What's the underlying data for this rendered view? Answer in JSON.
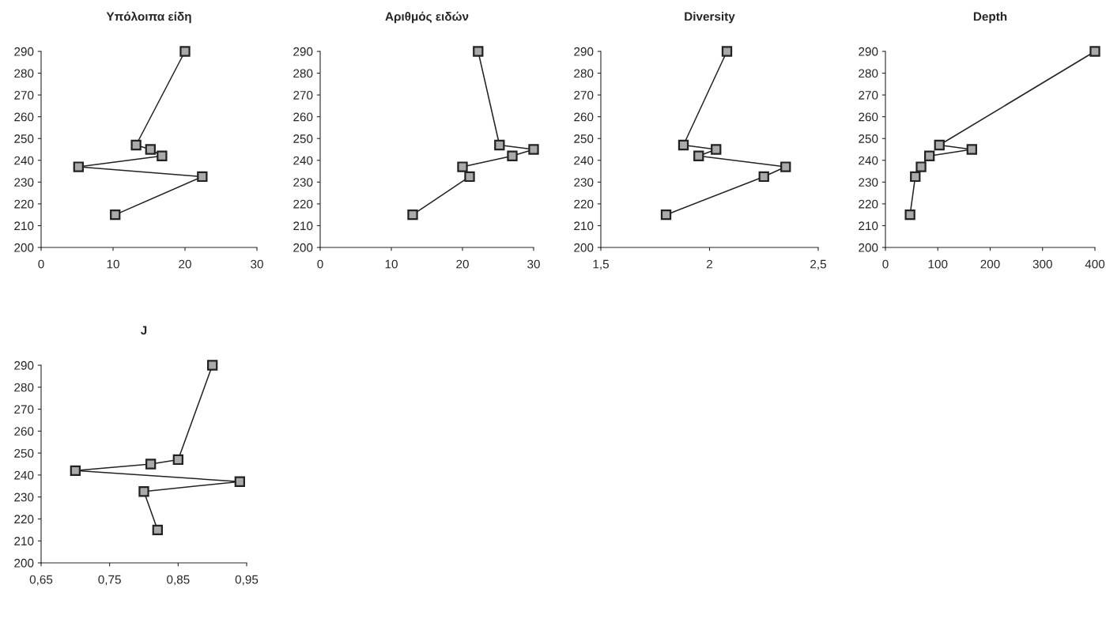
{
  "chart_data": [
    {
      "type": "line",
      "title": "Υπόλοιπα είδη",
      "marker": "square",
      "grid": false,
      "xlim": [
        0,
        30
      ],
      "xticks": [
        0,
        10,
        20,
        30
      ],
      "ylim": [
        200,
        290
      ],
      "yticks": [
        200,
        210,
        220,
        230,
        240,
        250,
        260,
        270,
        280,
        290
      ],
      "series": [
        {
          "color": "#222222",
          "x": [
            20,
            13.2,
            15.2,
            16.8,
            5.2,
            22.4,
            10.3
          ],
          "values": [
            290,
            247,
            245,
            242,
            237,
            232.5,
            215
          ]
        }
      ]
    },
    {
      "type": "line",
      "title": "Αριθμός ειδών",
      "marker": "square",
      "grid": false,
      "xlim": [
        0,
        30
      ],
      "xticks": [
        0,
        10,
        20,
        30
      ],
      "ylim": [
        200,
        290
      ],
      "yticks": [
        200,
        210,
        220,
        230,
        240,
        250,
        260,
        270,
        280,
        290
      ],
      "series": [
        {
          "color": "#222222",
          "x": [
            22.2,
            25.2,
            30,
            27,
            20,
            21,
            13
          ],
          "values": [
            290,
            247,
            245,
            242,
            237,
            232.5,
            215
          ]
        }
      ]
    },
    {
      "type": "line",
      "title": "Diversity",
      "marker": "square",
      "grid": false,
      "xlim": [
        1.5,
        2.5
      ],
      "xticks": [
        {
          "value": 1.5,
          "label": "1,5"
        },
        2,
        {
          "value": 2.5,
          "label": "2,5"
        }
      ],
      "ylim": [
        200,
        290
      ],
      "yticks": [
        200,
        210,
        220,
        230,
        240,
        250,
        260,
        270,
        280,
        290
      ],
      "series": [
        {
          "color": "#222222",
          "x": [
            2.08,
            1.88,
            2.03,
            1.95,
            2.35,
            2.25,
            1.8
          ],
          "values": [
            290,
            247,
            245,
            242,
            237,
            232.5,
            215
          ]
        }
      ]
    },
    {
      "type": "line",
      "title": "Depth",
      "marker": "square",
      "grid": false,
      "xlim": [
        0,
        400
      ],
      "xticks": [
        0,
        100,
        200,
        300,
        400
      ],
      "ylim": [
        200,
        290
      ],
      "yticks": [
        200,
        210,
        220,
        230,
        240,
        250,
        260,
        270,
        280,
        290
      ],
      "series": [
        {
          "color": "#222222",
          "x": [
            400,
            103,
            165,
            84,
            68,
            57,
            47
          ],
          "values": [
            290,
            247,
            245,
            242,
            237,
            232.5,
            215
          ]
        }
      ]
    },
    {
      "type": "line",
      "title": "J",
      "marker": "square",
      "grid": false,
      "xlim": [
        0.65,
        0.95
      ],
      "xticks": [
        {
          "value": 0.65,
          "label": "0,65"
        },
        {
          "value": 0.75,
          "label": "0,75"
        },
        {
          "value": 0.85,
          "label": "0,85"
        },
        {
          "value": 0.95,
          "label": "0,95"
        }
      ],
      "ylim": [
        200,
        290
      ],
      "yticks": [
        200,
        210,
        220,
        230,
        240,
        250,
        260,
        270,
        280,
        290
      ],
      "series": [
        {
          "color": "#222222",
          "x": [
            0.9,
            0.85,
            0.81,
            0.7,
            0.94,
            0.8,
            0.82
          ],
          "values": [
            290,
            247,
            245,
            242,
            237,
            232.5,
            215
          ]
        }
      ]
    }
  ]
}
